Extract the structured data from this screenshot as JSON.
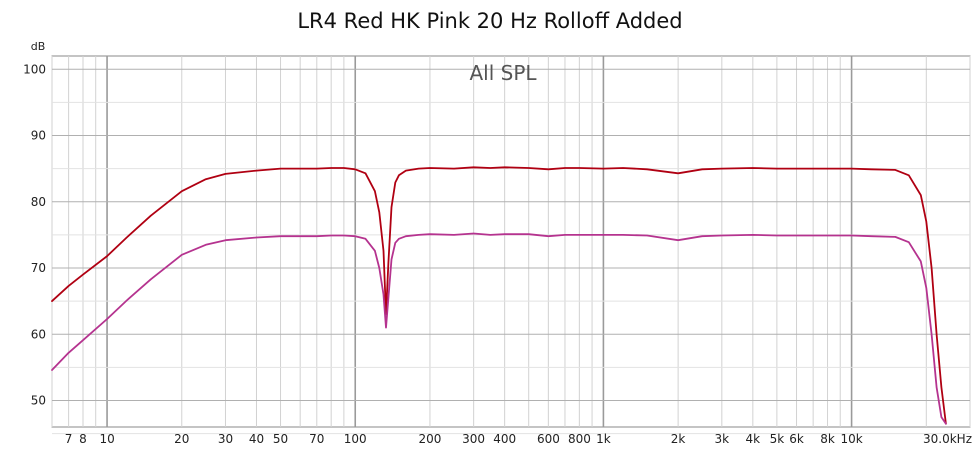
{
  "chart_data": {
    "type": "line",
    "title": "LR4 Red HK Pink 20 Hz Rolloff Added",
    "inner_label": "All SPL",
    "ylabel": "dB",
    "x_unit": "kHz",
    "x_scale": "log",
    "xlim": [
      6,
      30000
    ],
    "ylim": [
      46,
      102
    ],
    "grid": true,
    "x_ticks": [
      {
        "value": 7,
        "label": "7"
      },
      {
        "value": 8,
        "label": "8"
      },
      {
        "value": 10,
        "label": "10"
      },
      {
        "value": 20,
        "label": "20"
      },
      {
        "value": 30,
        "label": "30"
      },
      {
        "value": 40,
        "label": "40"
      },
      {
        "value": 50,
        "label": "50"
      },
      {
        "value": 70,
        "label": "70"
      },
      {
        "value": 100,
        "label": "100"
      },
      {
        "value": 200,
        "label": "200"
      },
      {
        "value": 300,
        "label": "300"
      },
      {
        "value": 400,
        "label": "400"
      },
      {
        "value": 600,
        "label": "600"
      },
      {
        "value": 800,
        "label": "800"
      },
      {
        "value": 1000,
        "label": "1k"
      },
      {
        "value": 2000,
        "label": "2k"
      },
      {
        "value": 3000,
        "label": "3k"
      },
      {
        "value": 4000,
        "label": "4k"
      },
      {
        "value": 5000,
        "label": "5k"
      },
      {
        "value": 6000,
        "label": "6k"
      },
      {
        "value": 8000,
        "label": "8k"
      },
      {
        "value": 10000,
        "label": "10k"
      },
      {
        "value": 30000,
        "label": "30.0kHz"
      }
    ],
    "y_ticks": [
      {
        "value": 50,
        "label": "50"
      },
      {
        "value": 60,
        "label": "60"
      },
      {
        "value": 70,
        "label": "70"
      },
      {
        "value": 80,
        "label": "80"
      },
      {
        "value": 90,
        "label": "90"
      },
      {
        "value": 100,
        "label": "100"
      }
    ],
    "series": [
      {
        "color": "#b00012",
        "x": [
          6,
          7,
          8,
          10,
          12,
          15,
          20,
          25,
          30,
          40,
          50,
          60,
          70,
          80,
          90,
          100,
          110,
          120,
          125,
          130,
          133,
          136,
          140,
          145,
          150,
          160,
          180,
          200,
          250,
          300,
          350,
          400,
          500,
          600,
          700,
          800,
          1000,
          1200,
          1500,
          2000,
          2500,
          3000,
          4000,
          5000,
          6000,
          8000,
          10000,
          12000,
          15000,
          17000,
          19000,
          20000,
          21000,
          22000,
          23000,
          24000
        ],
        "y": [
          65,
          67.3,
          69,
          71.8,
          74.6,
          77.9,
          81.6,
          83.4,
          84.2,
          84.7,
          85.0,
          85.0,
          85.0,
          85.1,
          85.1,
          84.9,
          84.3,
          81.6,
          78.4,
          72.6,
          63.0,
          70.8,
          79.2,
          82.9,
          84.0,
          84.7,
          85.0,
          85.1,
          85.0,
          85.2,
          85.1,
          85.2,
          85.1,
          84.9,
          85.1,
          85.1,
          85.0,
          85.1,
          84.9,
          84.3,
          84.9,
          85.0,
          85.1,
          85.0,
          85.0,
          85.0,
          85.0,
          84.9,
          84.8,
          84.0,
          81.0,
          77.0,
          70.0,
          60.0,
          52.0,
          46.5
        ]
      },
      {
        "color": "#b5338f",
        "x": [
          6,
          7,
          8,
          10,
          12,
          15,
          20,
          25,
          30,
          40,
          50,
          60,
          70,
          80,
          90,
          100,
          110,
          120,
          125,
          130,
          133,
          136,
          140,
          145,
          150,
          160,
          180,
          200,
          250,
          300,
          350,
          400,
          500,
          600,
          700,
          800,
          1000,
          1200,
          1500,
          2000,
          2500,
          3000,
          4000,
          5000,
          6000,
          8000,
          10000,
          12000,
          15000,
          17000,
          19000,
          20000,
          21000,
          22000,
          23000,
          24000
        ],
        "y": [
          54.6,
          57.2,
          59.1,
          62.3,
          65.1,
          68.3,
          72.0,
          73.5,
          74.2,
          74.6,
          74.8,
          74.8,
          74.8,
          74.9,
          74.9,
          74.8,
          74.4,
          72.6,
          70.0,
          66.0,
          61.0,
          65.5,
          71.3,
          73.8,
          74.4,
          74.8,
          75.0,
          75.1,
          75.0,
          75.2,
          75.0,
          75.1,
          75.1,
          74.8,
          75.0,
          75.0,
          75.0,
          75.0,
          74.9,
          74.2,
          74.8,
          74.9,
          75.0,
          74.9,
          74.9,
          74.9,
          74.9,
          74.8,
          74.7,
          73.9,
          71.0,
          67.0,
          60.0,
          52.0,
          47.5,
          46.5
        ]
      }
    ]
  }
}
